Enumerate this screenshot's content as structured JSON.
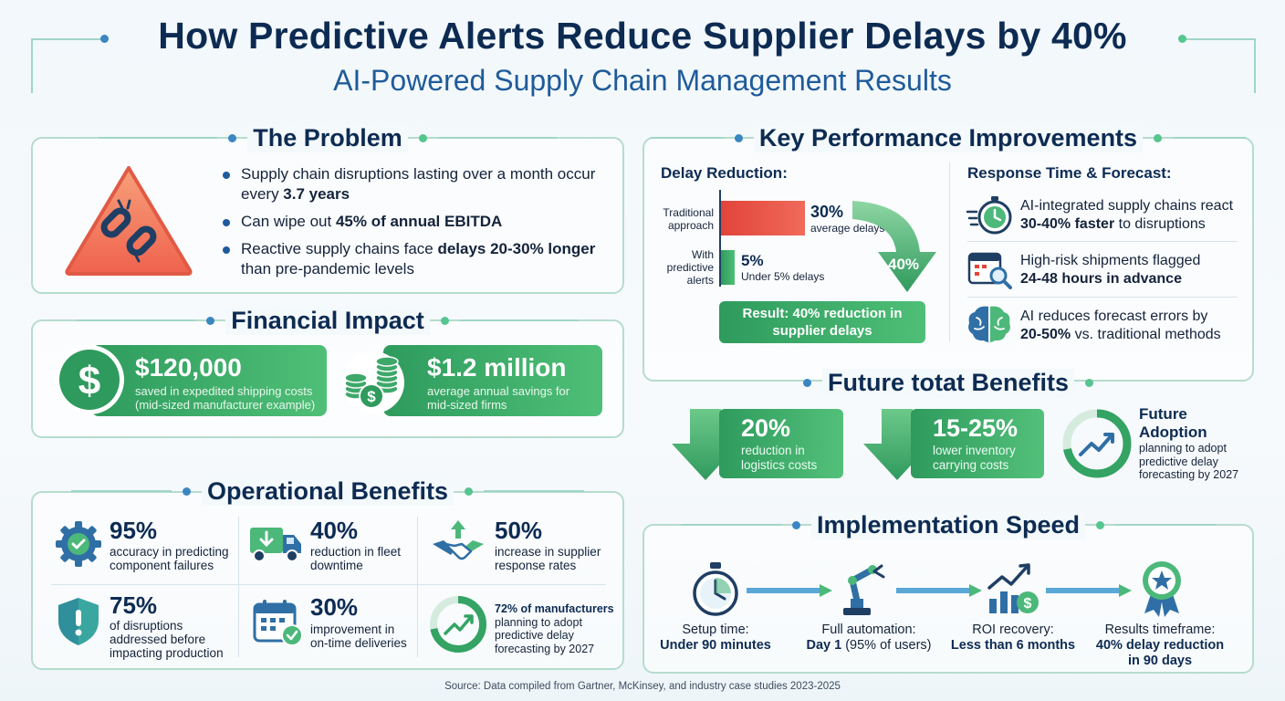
{
  "header": {
    "title": "How Predictive Alerts Reduce Supplier Delays by 40%",
    "subtitle": "AI-Powered Supply Chain Management Results"
  },
  "problem": {
    "title": "The Problem",
    "icon": "broken-chain-warning-icon",
    "bullets": [
      {
        "pre": "Supply chain disruptions lasting over a month occur every ",
        "bold": "3.7 years",
        "post": ""
      },
      {
        "pre": "Can wipe out ",
        "bold": "45% of annual EBITDA",
        "post": ""
      },
      {
        "pre": "Reactive supply chains face ",
        "bold": "delays 20-30% longer",
        "post": " than pre-pandemic levels"
      }
    ]
  },
  "financial": {
    "title": "Financial Impact",
    "cards": [
      {
        "icon": "dollar-icon",
        "value": "$120,000",
        "desc1": "saved in expedited shipping costs",
        "desc2": "(mid-sized manufacturer example)"
      },
      {
        "icon": "coins-icon",
        "value": "$1.2 million",
        "desc1": "average annual savings for",
        "desc2": "mid-sized firms"
      }
    ]
  },
  "operational": {
    "title": "Operational Benefits",
    "items": [
      {
        "icon": "gear-check-icon",
        "value": "95%",
        "desc1": "accuracy in predicting",
        "desc2": "component failures",
        "desc3": ""
      },
      {
        "icon": "truck-icon",
        "value": "40%",
        "desc1": "reduction in fleet",
        "desc2": "downtime",
        "desc3": ""
      },
      {
        "icon": "handshake-icon",
        "value": "50%",
        "desc1": "increase in supplier",
        "desc2": "response rates",
        "desc3": ""
      },
      {
        "icon": "shield-alert-icon",
        "value": "75%",
        "desc1": "of disruptions",
        "desc2": "addressed before",
        "desc3": "impacting production"
      },
      {
        "icon": "calendar-check-icon",
        "value": "30%",
        "desc1": "improvement in",
        "desc2": "on-time deliveries",
        "desc3": ""
      }
    ],
    "adoption": {
      "icon": "trend-up-icon",
      "bold": "72% of manufacturers",
      "desc1": "planning to adopt",
      "desc2": "predictive delay",
      "desc3": "forecasting by 2027",
      "value": 0.72
    }
  },
  "kpi": {
    "title": "Key Performance Improvements",
    "delay": {
      "title": "Delay Reduction:",
      "rows": [
        {
          "label1": "Traditional",
          "label2": "approach",
          "label3": "",
          "value": "30%",
          "desc": "average delays",
          "pct": 30
        },
        {
          "label1": "With",
          "label2": "predictive",
          "label3": "alerts",
          "value": "5%",
          "desc": "Under 5% delays",
          "pct": 5
        }
      ],
      "arrow_label": "40%",
      "result1": "Result: 40% reduction in",
      "result2": "supplier delays"
    },
    "response": {
      "title": "Response Time & Forecast:",
      "items": [
        {
          "icon": "stopwatch-icon",
          "line1": "AI-integrated supply chains react",
          "bold": "30-40% faster",
          "post": " to disruptions"
        },
        {
          "icon": "calendar-search-icon",
          "line1": "High-risk shipments flagged",
          "bold": "24-48 hours in advance",
          "post": ""
        },
        {
          "icon": "brain-icon",
          "line1": "AI reduces forecast errors by",
          "bold": "20-50%",
          "post": " vs. traditional methods"
        }
      ]
    }
  },
  "future": {
    "title": "Future totat Benefits",
    "cards": [
      {
        "value": "20%",
        "desc1": "reduction in",
        "desc2": "logistics costs"
      },
      {
        "value": "15-25%",
        "desc1": "lower inventory",
        "desc2": "carrying costs"
      }
    ],
    "adoption": {
      "title1": "Future",
      "title2": "Adoption",
      "desc1": "planning to adopt",
      "desc2": "predictive delay",
      "desc3": "forecasting by 2027",
      "icon": "trend-up-icon",
      "value": 0.72
    }
  },
  "implementation": {
    "title": "Implementation Speed",
    "steps": [
      {
        "icon": "stopwatch-icon",
        "label": "Setup time:",
        "bold": "Under 90 minutes",
        "bold2": ""
      },
      {
        "icon": "robot-arm-icon",
        "label": "Full automation:",
        "bold": "Day 1",
        "post": " (95% of users)",
        "bold2": ""
      },
      {
        "icon": "roi-chart-icon",
        "label": "ROI recovery:",
        "bold": "Less than 6 months",
        "bold2": ""
      },
      {
        "icon": "award-ribbon-icon",
        "label": "Results timeframe:",
        "bold": "40% delay reduction",
        "bold2": "in 90 days"
      }
    ]
  },
  "source": "Source: Data compiled from Gartner, McKinsey, and industry case studies 2023-2025"
}
